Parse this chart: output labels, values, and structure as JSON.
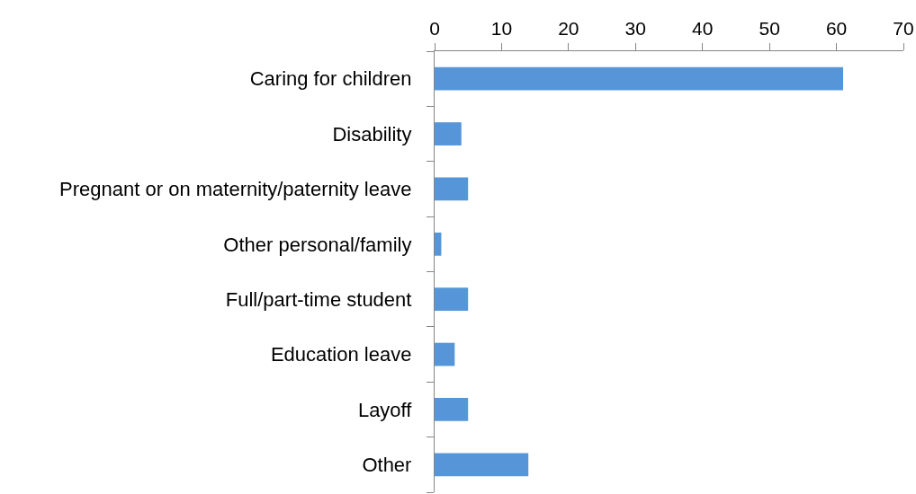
{
  "chart_data": {
    "type": "bar",
    "orientation": "horizontal",
    "categories": [
      "Caring for children",
      "Disability",
      "Pregnant or on maternity/paternity leave",
      "Other personal/family",
      "Full/part-time student",
      "Education leave",
      "Layoff",
      "Other"
    ],
    "values": [
      61,
      4,
      5,
      1,
      5,
      3,
      5,
      14
    ],
    "color": "#5696d8",
    "xlim": [
      0,
      70
    ],
    "xticks": [
      0,
      10,
      20,
      30,
      40,
      50,
      60,
      70
    ]
  }
}
